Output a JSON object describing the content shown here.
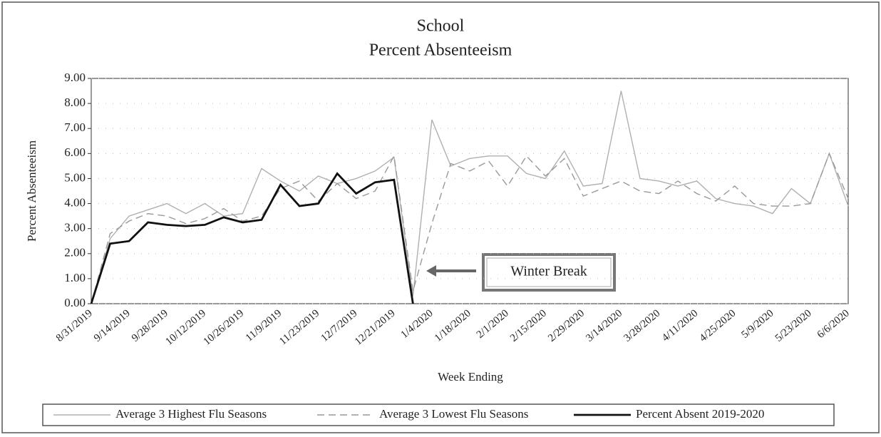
{
  "chart_data": {
    "type": "line",
    "title": "School",
    "subtitle": "Percent Absenteeism",
    "x_label": "Week Ending",
    "y_label": "Percent Absenteeism",
    "annotation": "Winter Break",
    "categories": [
      "8/31/2019",
      null,
      "9/14/2019",
      null,
      "9/28/2019",
      null,
      "10/12/2019",
      null,
      "10/26/2019",
      null,
      "11/9/2019",
      null,
      "11/23/2019",
      null,
      "12/7/2019",
      null,
      "12/21/2019",
      null,
      "1/4/2020",
      null,
      "1/18/2020",
      null,
      "2/1/2020",
      null,
      "2/15/2020",
      null,
      "2/29/2020",
      null,
      "3/14/2020",
      null,
      "3/28/2020",
      null,
      "4/11/2020",
      null,
      "4/25/2020",
      null,
      "5/9/2020",
      null,
      "5/23/2020",
      null,
      "6/6/2020"
    ],
    "series": [
      {
        "name": "Average 3 Highest Flu Seasons",
        "color": "#b0b0b0",
        "dash": "solid",
        "values": [
          0,
          2.6,
          3.5,
          3.75,
          4.0,
          3.6,
          4.0,
          3.5,
          3.6,
          5.4,
          4.9,
          4.5,
          5.1,
          4.8,
          5.0,
          5.3,
          5.85,
          0.3,
          7.35,
          5.5,
          5.8,
          5.9,
          5.9,
          5.2,
          5.0,
          6.1,
          4.7,
          4.8,
          8.5,
          5.0,
          4.9,
          4.7,
          4.9,
          4.2,
          4.0,
          3.9,
          3.6,
          4.6,
          4.0,
          6.0,
          3.9
        ]
      },
      {
        "name": "Average 3 Lowest Flu Seasons",
        "color": "#999999",
        "dash": "dashed",
        "values": [
          0,
          2.8,
          3.3,
          3.6,
          3.5,
          3.2,
          3.4,
          3.8,
          3.3,
          3.5,
          4.6,
          4.9,
          4.1,
          4.8,
          4.2,
          4.5,
          5.9,
          0.5,
          3.2,
          5.6,
          5.3,
          5.7,
          4.7,
          5.9,
          5.1,
          5.8,
          4.3,
          4.6,
          4.9,
          4.5,
          4.4,
          4.9,
          4.4,
          4.1,
          4.7,
          4.0,
          3.9,
          3.9,
          4.0,
          6.0,
          4.2
        ]
      },
      {
        "name": "Percent Absent 2019-2020",
        "color": "#111111",
        "dash": "solid",
        "values": [
          0,
          2.4,
          2.5,
          3.25,
          3.15,
          3.1,
          3.15,
          3.45,
          3.25,
          3.35,
          4.75,
          3.9,
          4.0,
          5.2,
          4.4,
          4.85,
          4.95,
          0,
          null,
          null,
          null,
          null,
          null,
          null,
          null,
          null,
          null,
          null,
          null,
          null,
          null,
          null,
          null,
          null,
          null,
          null,
          null,
          null,
          null,
          null,
          null
        ]
      }
    ],
    "ylim": [
      0,
      9
    ],
    "yticks": [
      {
        "value": 0,
        "label": "0.00"
      },
      {
        "value": 1,
        "label": "1.00"
      },
      {
        "value": 2,
        "label": "2.00"
      },
      {
        "value": 3,
        "label": "3.00"
      },
      {
        "value": 4,
        "label": "4.00"
      },
      {
        "value": 5,
        "label": "5.00"
      },
      {
        "value": 6,
        "label": "6.00"
      },
      {
        "value": 7,
        "label": "7.00"
      },
      {
        "value": 8,
        "label": "8.00"
      },
      {
        "value": 9,
        "label": "9.00"
      }
    ],
    "grid": true,
    "legend": "bottom"
  }
}
